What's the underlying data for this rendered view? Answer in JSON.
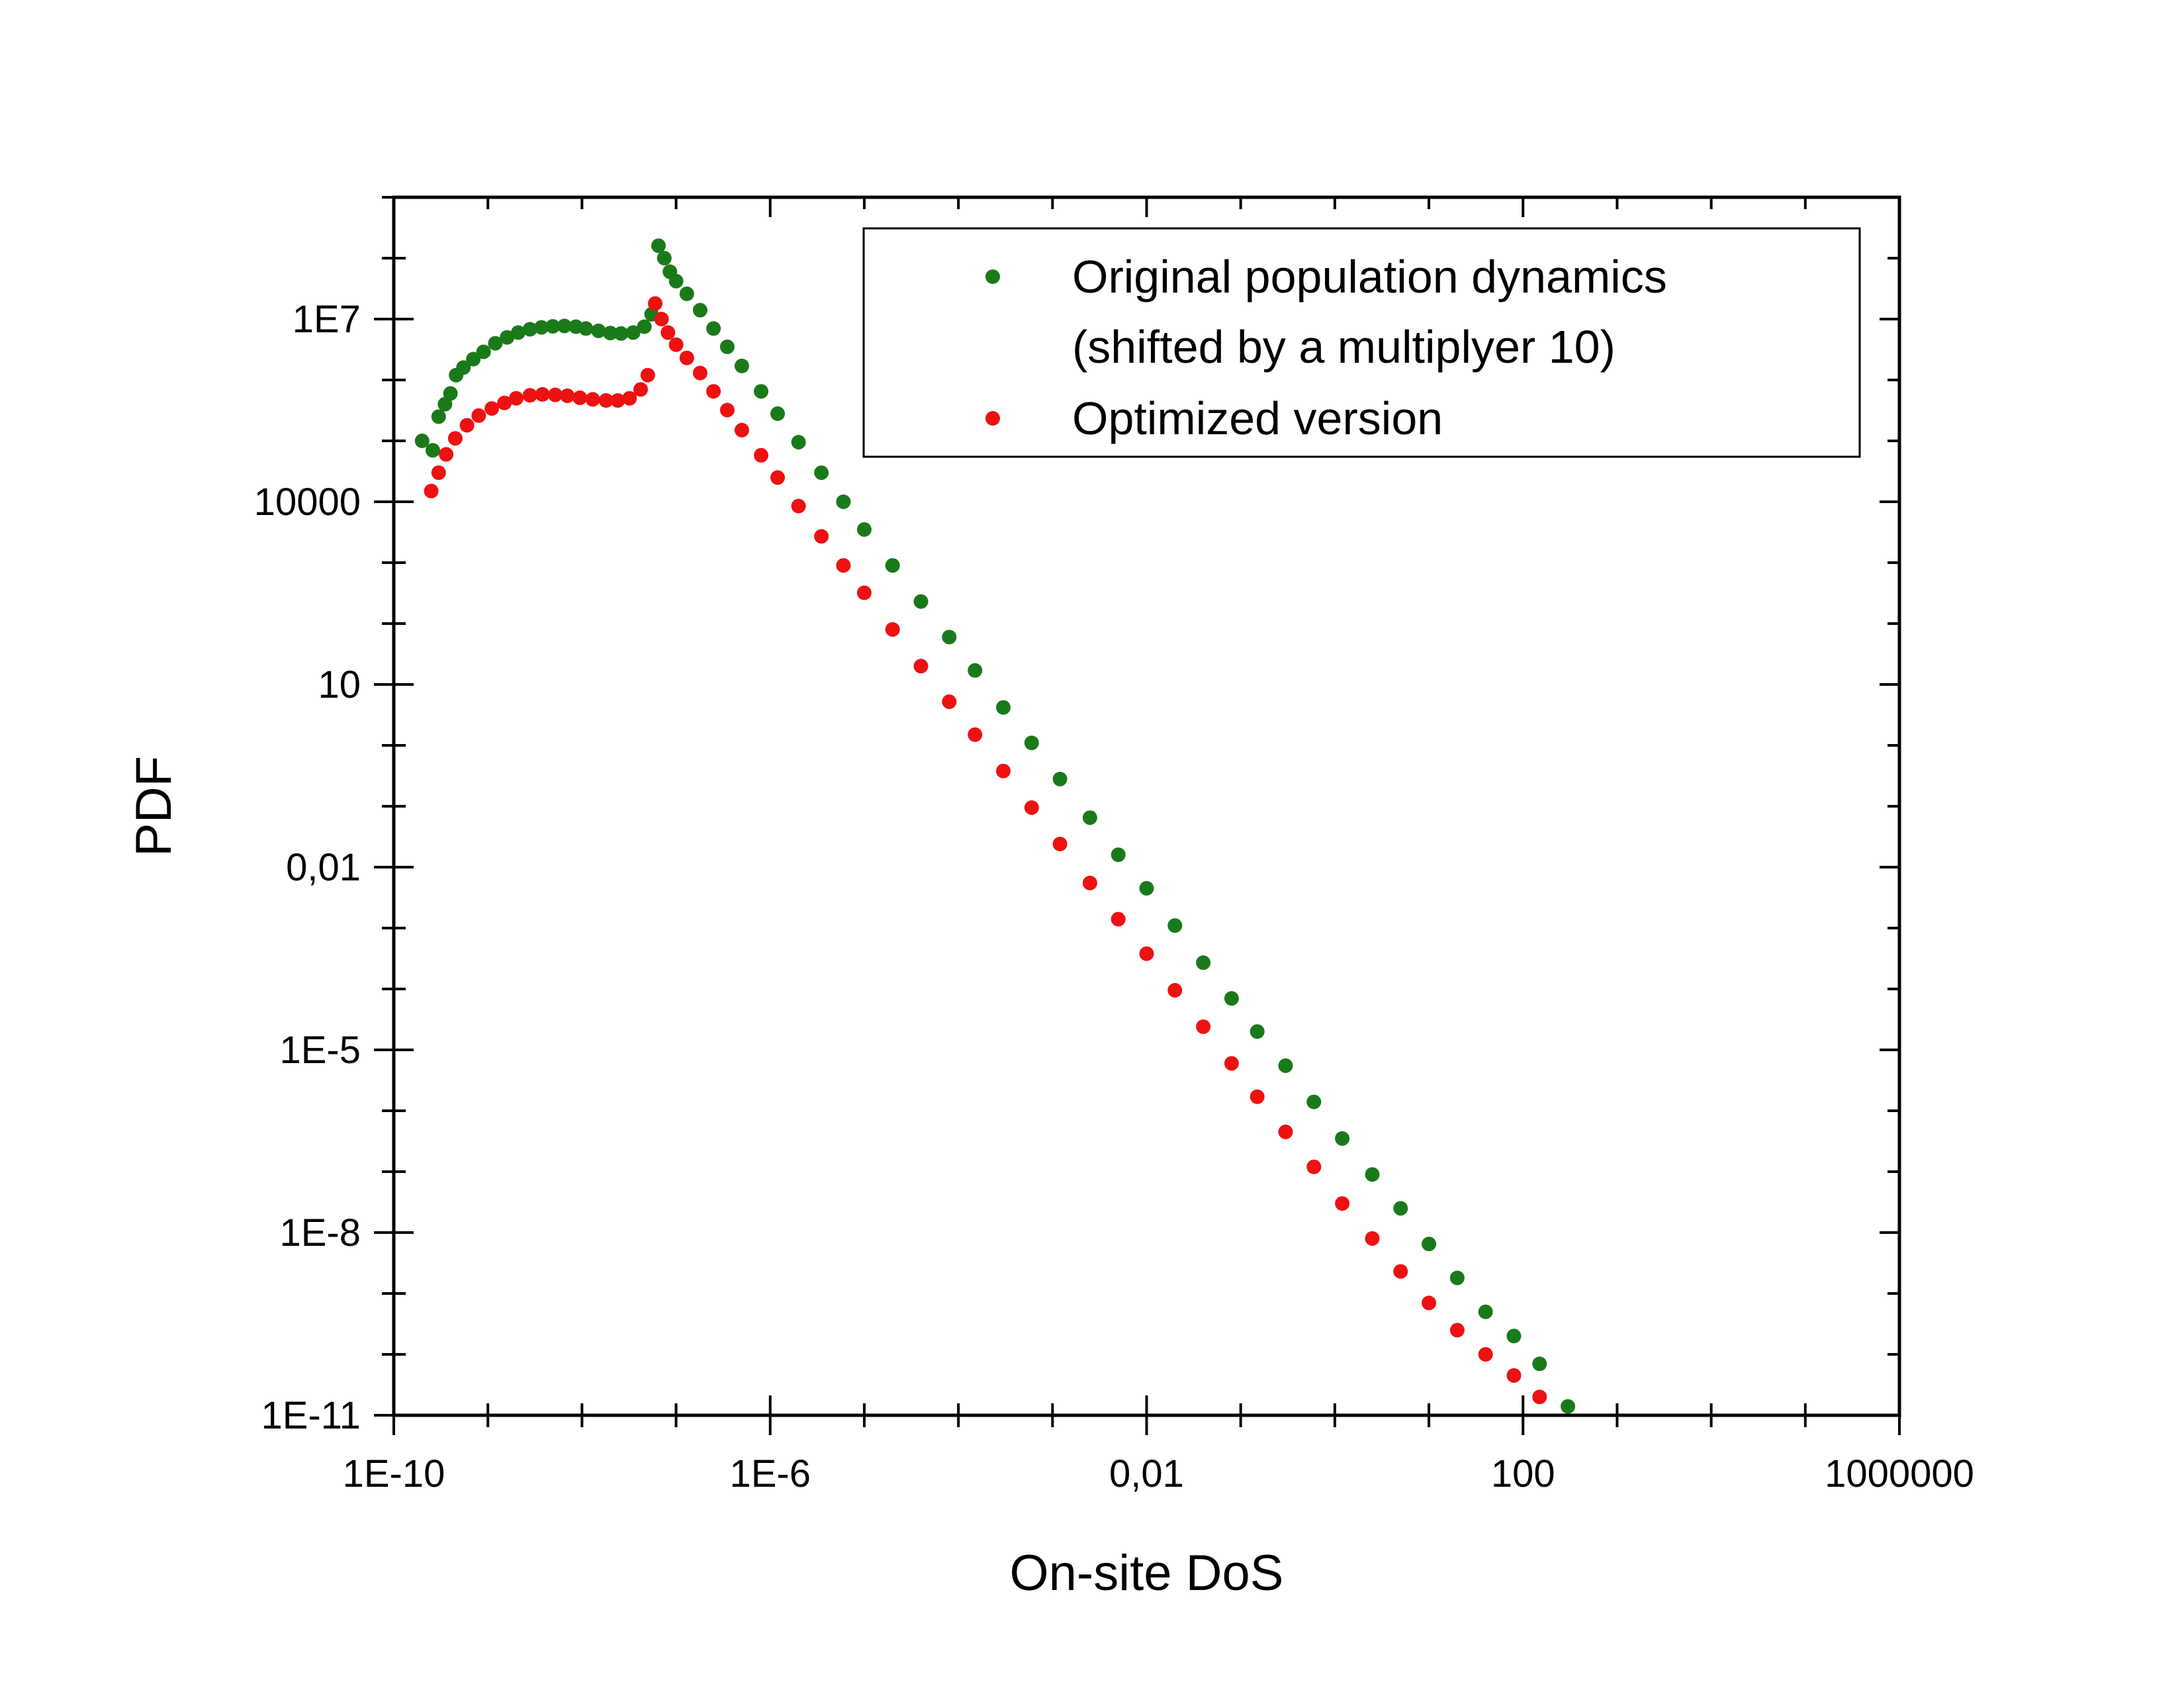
{
  "chart_data": {
    "type": "scatter",
    "xlabel": "On-site DoS",
    "ylabel": "PDF",
    "xscale": "log",
    "yscale": "log",
    "xlim": [
      1e-10,
      1000000.0
    ],
    "ylim": [
      1e-11,
      1000000000.0
    ],
    "x_ticks": [
      {
        "value": 1e-10,
        "label": "1E-10"
      },
      {
        "value": 1e-06,
        "label": "1E-6"
      },
      {
        "value": 0.01,
        "label": "0,01"
      },
      {
        "value": 100,
        "label": "100"
      },
      {
        "value": 1000000.0,
        "label": "1000000"
      }
    ],
    "y_ticks": [
      {
        "value": 1e-11,
        "label": "1E-11"
      },
      {
        "value": 1e-08,
        "label": "1E-8"
      },
      {
        "value": 1e-05,
        "label": "1E-5"
      },
      {
        "value": 0.01,
        "label": "0,01"
      },
      {
        "value": 10,
        "label": "10"
      },
      {
        "value": 10000,
        "label": "10000"
      },
      {
        "value": 10000000.0,
        "label": "1E7"
      }
    ],
    "legend": {
      "placement": "top-right",
      "entries": [
        {
          "text": "Original population dynamics",
          "color": "#1a7a1a"
        },
        {
          "text": "(shifted by a multiplyer 10)",
          "color": null
        },
        {
          "text": "Optimized version",
          "color": "#ee1111"
        }
      ]
    },
    "series": [
      {
        "name": "Original population dynamics (shifted by a multiplyer 10)",
        "color": "#1a7a1a",
        "points": [
          [
            2e-10,
            100000.0
          ],
          [
            2.6e-10,
            70000.0
          ],
          [
            3e-10,
            250000.0
          ],
          [
            3.5e-10,
            400000.0
          ],
          [
            4e-10,
            600000.0
          ],
          [
            4.6e-10,
            1200000.0
          ],
          [
            5.5e-10,
            1600000.0
          ],
          [
            7e-10,
            2200000.0
          ],
          [
            9e-10,
            2900000.0
          ],
          [
            1.2e-09,
            4000000.0
          ],
          [
            1.6e-09,
            5000000.0
          ],
          [
            2.1e-09,
            6000000.0
          ],
          [
            2.8e-09,
            6800000.0
          ],
          [
            3.7e-09,
            7300000.0
          ],
          [
            4.9e-09,
            7600000.0
          ],
          [
            6.5e-09,
            7700000.0
          ],
          [
            8.6e-09,
            7500000.0
          ],
          [
            1.1e-08,
            7000000.0
          ],
          [
            1.5e-08,
            6400000.0
          ],
          [
            2e-08,
            5900000.0
          ],
          [
            2.6e-08,
            5800000.0
          ],
          [
            3.5e-08,
            6000000.0
          ],
          [
            4.6e-08,
            7500000.0
          ],
          [
            5.5e-08,
            12000000.0
          ],
          [
            6.5e-08,
            160000000.0
          ],
          [
            7.5e-08,
            100000000.0
          ],
          [
            8.6e-08,
            60000000.0
          ],
          [
            1e-07,
            42000000.0
          ],
          [
            1.3e-07,
            26000000.0
          ],
          [
            1.8e-07,
            14000000.0
          ],
          [
            2.5e-07,
            7000000.0
          ],
          [
            3.5e-07,
            3500000.0
          ],
          [
            5e-07,
            1700000.0
          ],
          [
            8e-07,
            650000.0
          ],
          [
            1.2e-06,
            280000.0
          ],
          [
            2e-06,
            95000.0
          ],
          [
            3.5e-06,
            30000.0
          ],
          [
            6e-06,
            10000.0
          ],
          [
            1e-05,
            3500.0
          ],
          [
            2e-05,
            900.0
          ],
          [
            4e-05,
            230.0
          ],
          [
            8e-05,
            60.0
          ],
          [
            0.00015,
            17.0
          ],
          [
            0.0003,
            4.2
          ],
          [
            0.0006,
            1.1
          ],
          [
            0.0012,
            0.28
          ],
          [
            0.0025,
            0.065
          ],
          [
            0.005,
            0.016
          ],
          [
            0.01,
            0.0045
          ],
          [
            0.02,
            0.0011
          ],
          [
            0.04,
            0.00027
          ],
          [
            0.08,
            7e-05
          ],
          [
            0.15,
            2e-05
          ],
          [
            0.3,
            5.5e-06
          ],
          [
            0.6,
            1.4e-06
          ],
          [
            1.2,
            3.5e-07
          ],
          [
            2.5,
            9e-08
          ],
          [
            5.0,
            2.5e-08
          ],
          [
            10.0,
            6.5e-09
          ],
          [
            20.0,
            1.8e-09
          ],
          [
            40.0,
            5e-10
          ],
          [
            80.0,
            2e-10
          ],
          [
            150.0,
            7e-11
          ],
          [
            300.0,
            1.4e-11
          ]
        ]
      },
      {
        "name": "Optimized version",
        "color": "#ee1111",
        "points": [
          [
            2.5e-10,
            15000.0
          ],
          [
            3e-10,
            30000.0
          ],
          [
            3.6e-10,
            60000.0
          ],
          [
            4.5e-10,
            110000.0
          ],
          [
            6e-10,
            180000.0
          ],
          [
            8e-10,
            260000.0
          ],
          [
            1.1e-09,
            340000.0
          ],
          [
            1.5e-09,
            420000.0
          ],
          [
            2e-09,
            500000.0
          ],
          [
            2.8e-09,
            560000.0
          ],
          [
            3.8e-09,
            580000.0
          ],
          [
            5.2e-09,
            570000.0
          ],
          [
            7e-09,
            550000.0
          ],
          [
            9.5e-09,
            510000.0
          ],
          [
            1.3e-08,
            480000.0
          ],
          [
            1.8e-08,
            460000.0
          ],
          [
            2.4e-08,
            460000.0
          ],
          [
            3.2e-08,
            500000.0
          ],
          [
            4.2e-08,
            700000.0
          ],
          [
            5e-08,
            1200000.0
          ],
          [
            6e-08,
            18000000.0
          ],
          [
            7e-08,
            10000000.0
          ],
          [
            8.2e-08,
            6000000.0
          ],
          [
            1e-07,
            3800000.0
          ],
          [
            1.3e-07,
            2300000.0
          ],
          [
            1.8e-07,
            1300000.0
          ],
          [
            2.5e-07,
            650000.0
          ],
          [
            3.5e-07,
            320000.0
          ],
          [
            5e-07,
            150000.0
          ],
          [
            8e-07,
            58000.0
          ],
          [
            1.2e-06,
            25000.0
          ],
          [
            2e-06,
            8500.0
          ],
          [
            3.5e-06,
            2700.0
          ],
          [
            6e-06,
            900.0
          ],
          [
            1e-05,
            320.0
          ],
          [
            2e-05,
            80.0
          ],
          [
            4e-05,
            20.0
          ],
          [
            8e-05,
            5.2
          ],
          [
            0.00015,
            1.5
          ],
          [
            0.0003,
            0.38
          ],
          [
            0.0006,
            0.095
          ],
          [
            0.0012,
            0.024
          ],
          [
            0.0025,
            0.0055
          ],
          [
            0.005,
            0.0014
          ],
          [
            0.01,
            0.00038
          ],
          [
            0.02,
            9.5e-05
          ],
          [
            0.04,
            2.4e-05
          ],
          [
            0.08,
            6e-06
          ],
          [
            0.15,
            1.7e-06
          ],
          [
            0.3,
            4.5e-07
          ],
          [
            0.6,
            1.2e-07
          ],
          [
            1.2,
            3e-08
          ],
          [
            2.5,
            8e-09
          ],
          [
            5.0,
            2.3e-09
          ],
          [
            10.0,
            7e-10
          ],
          [
            20.0,
            2.5e-10
          ],
          [
            40.0,
            1e-10
          ],
          [
            80.0,
            4.5e-11
          ],
          [
            150.0,
            2e-11
          ]
        ]
      }
    ]
  }
}
